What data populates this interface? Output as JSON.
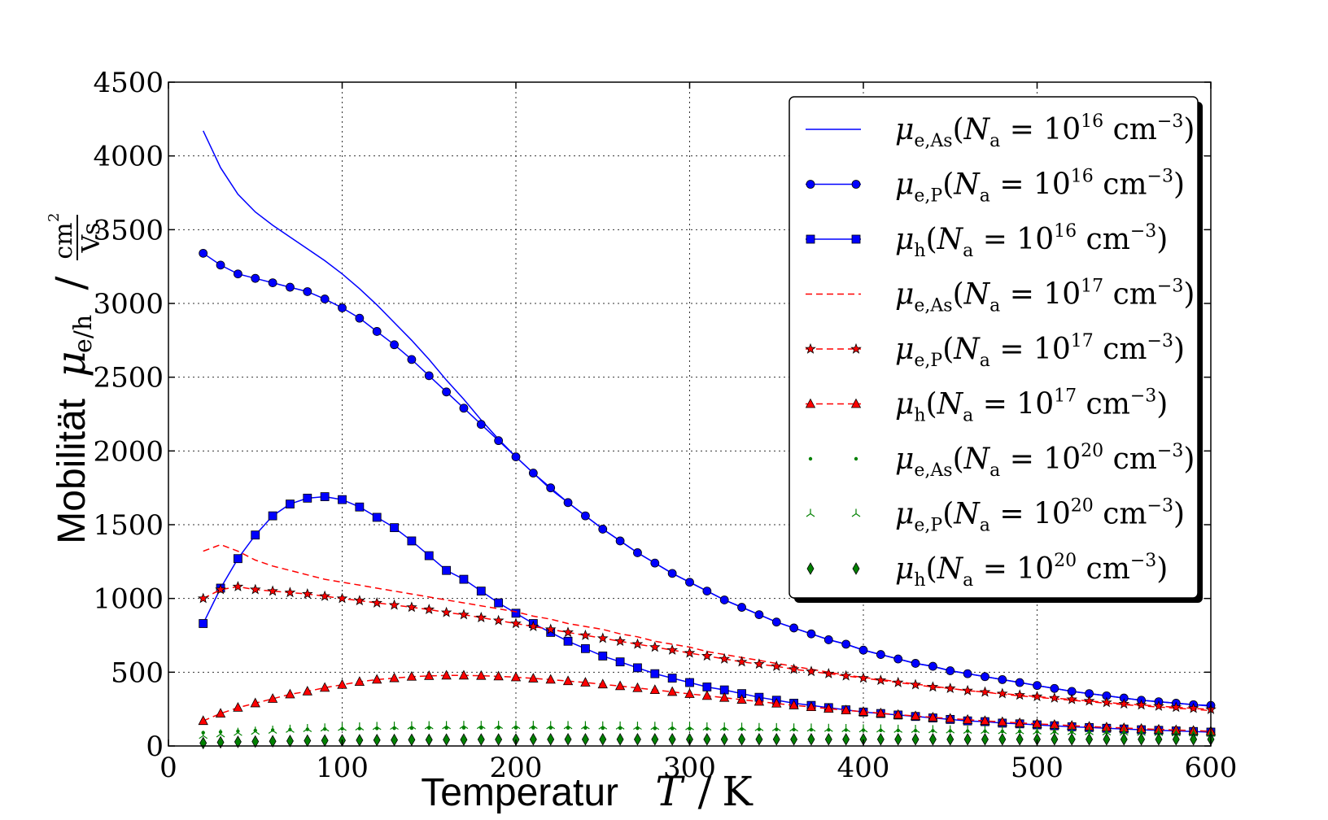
{
  "chart_data": {
    "type": "line",
    "xlabel": {
      "word": "Temperatur",
      "symbol": "T",
      "slash": "/",
      "unit": "K"
    },
    "ylabel": {
      "word": "Mobilität",
      "symbol": "μ",
      "symbol_sub": "e/h",
      "slash": "/",
      "unit_num": "cm",
      "unit_num_sup": "2",
      "unit_den": "Vs"
    },
    "xlim": [
      0,
      600
    ],
    "ylim": [
      0,
      4500
    ],
    "xticks": [
      0,
      100,
      200,
      300,
      400,
      500,
      600
    ],
    "yticks": [
      0,
      500,
      1000,
      1500,
      2000,
      2500,
      3000,
      3500,
      4000,
      4500
    ],
    "grid": true,
    "legend_position": "top-right",
    "x": [
      20,
      30,
      40,
      50,
      60,
      70,
      80,
      90,
      100,
      110,
      120,
      130,
      140,
      150,
      160,
      170,
      180,
      190,
      200,
      210,
      220,
      230,
      240,
      250,
      260,
      270,
      280,
      290,
      300,
      310,
      320,
      330,
      340,
      350,
      360,
      370,
      380,
      390,
      400,
      410,
      420,
      430,
      440,
      450,
      460,
      470,
      480,
      490,
      500,
      510,
      520,
      530,
      540,
      550,
      560,
      570,
      580,
      590,
      600
    ],
    "series": [
      {
        "name": "μe,As(Na = 10^16 cm^-3)",
        "legend": {
          "mu_sub": "e,As",
          "exp": "16"
        },
        "color": "#0000ff",
        "dash": "solid",
        "marker": "none",
        "values": [
          4170,
          3920,
          3740,
          3620,
          3530,
          3450,
          3370,
          3290,
          3200,
          3100,
          2990,
          2870,
          2750,
          2620,
          2480,
          2350,
          2210,
          2080,
          1960,
          1850,
          1740,
          1650,
          1560,
          1470,
          1390,
          1310,
          1240,
          1170,
          1110,
          1050,
          990,
          940,
          890,
          840,
          800,
          760,
          720,
          690,
          650,
          620,
          590,
          560,
          540,
          510,
          490,
          470,
          450,
          430,
          410,
          390,
          370,
          355,
          340,
          325,
          310,
          300,
          290,
          280,
          270
        ]
      },
      {
        "name": "μe,P(Na = 10^16 cm^-3)",
        "legend": {
          "mu_sub": "e,P",
          "exp": "16"
        },
        "color": "#0000ff",
        "dash": "solid",
        "marker": "circle",
        "values": [
          3340,
          3260,
          3200,
          3170,
          3140,
          3110,
          3080,
          3030,
          2970,
          2900,
          2810,
          2720,
          2620,
          2510,
          2400,
          2290,
          2180,
          2070,
          1960,
          1850,
          1750,
          1650,
          1560,
          1470,
          1390,
          1310,
          1240,
          1170,
          1110,
          1050,
          990,
          940,
          890,
          840,
          800,
          760,
          720,
          690,
          650,
          620,
          590,
          560,
          540,
          510,
          490,
          470,
          450,
          430,
          410,
          390,
          370,
          355,
          340,
          325,
          310,
          300,
          290,
          280,
          275
        ]
      },
      {
        "name": "μh(Na = 10^16 cm^-3)",
        "legend": {
          "mu_sub": "h",
          "exp": "16"
        },
        "color": "#0000ff",
        "dash": "solid",
        "marker": "square",
        "values": [
          830,
          1070,
          1270,
          1430,
          1560,
          1640,
          1680,
          1690,
          1670,
          1620,
          1550,
          1480,
          1390,
          1290,
          1190,
          1130,
          1050,
          970,
          900,
          830,
          770,
          710,
          660,
          610,
          570,
          530,
          490,
          460,
          430,
          400,
          380,
          355,
          330,
          310,
          290,
          275,
          260,
          245,
          230,
          220,
          210,
          200,
          190,
          180,
          170,
          165,
          155,
          150,
          143,
          137,
          130,
          125,
          120,
          115,
          110,
          106,
          102,
          98,
          94
        ]
      },
      {
        "name": "μe,As(Na = 10^17 cm^-3)",
        "legend": {
          "mu_sub": "e,As",
          "exp": "17"
        },
        "color": "#ff0000",
        "dash": "dashed",
        "marker": "none",
        "values": [
          1320,
          1365,
          1320,
          1260,
          1220,
          1190,
          1160,
          1130,
          1110,
          1090,
          1070,
          1050,
          1030,
          1010,
          990,
          970,
          950,
          930,
          910,
          880,
          860,
          830,
          810,
          790,
          760,
          740,
          710,
          690,
          670,
          640,
          620,
          600,
          580,
          560,
          540,
          520,
          500,
          480,
          465,
          450,
          435,
          420,
          405,
          390,
          375,
          365,
          350,
          340,
          330,
          320,
          310,
          300,
          290,
          280,
          272,
          264,
          256,
          248,
          240
        ]
      },
      {
        "name": "μe,P(Na = 10^17 cm^-3)",
        "legend": {
          "mu_sub": "e,P",
          "exp": "17"
        },
        "color": "#ff0000",
        "dash": "dashed",
        "marker": "star",
        "values": [
          1000,
          1060,
          1080,
          1060,
          1050,
          1040,
          1030,
          1015,
          1000,
          985,
          970,
          955,
          940,
          925,
          905,
          890,
          870,
          850,
          830,
          810,
          790,
          770,
          750,
          730,
          710,
          690,
          670,
          650,
          630,
          610,
          590,
          570,
          555,
          540,
          520,
          505,
          490,
          475,
          460,
          445,
          430,
          415,
          400,
          390,
          375,
          365,
          355,
          345,
          335,
          325,
          315,
          305,
          295,
          285,
          278,
          270,
          262,
          255,
          248
        ]
      },
      {
        "name": "μh(Na = 10^17 cm^-3)",
        "legend": {
          "mu_sub": "h",
          "exp": "17"
        },
        "color": "#ff0000",
        "dash": "dashed",
        "marker": "triangle",
        "values": [
          170,
          220,
          260,
          290,
          320,
          350,
          370,
          395,
          415,
          435,
          450,
          460,
          470,
          475,
          478,
          478,
          476,
          472,
          466,
          458,
          450,
          440,
          430,
          418,
          406,
          393,
          380,
          367,
          353,
          340,
          327,
          314,
          301,
          288,
          276,
          264,
          253,
          242,
          232,
          222,
          212,
          203,
          194,
          186,
          178,
          170,
          163,
          156,
          150,
          144,
          138,
          132,
          127,
          122,
          117,
          112,
          108,
          104,
          100
        ]
      },
      {
        "name": "μe,As(Na = 10^20 cm^-3)",
        "legend": {
          "mu_sub": "e,As",
          "exp": "20"
        },
        "color": "#008000",
        "dash": "none",
        "marker": "point",
        "values": [
          90,
          95,
          100,
          105,
          108,
          111,
          113,
          115,
          117,
          118,
          119,
          120,
          121,
          122,
          122,
          123,
          123,
          123,
          123,
          123,
          123,
          122,
          122,
          121,
          121,
          120,
          119,
          118,
          117,
          116,
          115,
          114,
          113,
          112,
          111,
          110,
          109,
          108,
          107,
          106,
          105,
          104,
          103,
          102,
          101,
          100,
          99,
          98,
          97,
          96,
          95,
          94,
          93,
          92,
          91,
          90,
          89,
          88,
          87
        ]
      },
      {
        "name": "μe,P(Na = 10^20 cm^-3)",
        "legend": {
          "mu_sub": "e,P",
          "exp": "20"
        },
        "color": "#008000",
        "dash": "none",
        "marker": "tri",
        "values": [
          70,
          80,
          90,
          98,
          105,
          111,
          116,
          120,
          124,
          127,
          130,
          132,
          134,
          135,
          136,
          137,
          137,
          137,
          137,
          137,
          136,
          136,
          135,
          134,
          133,
          132,
          131,
          130,
          129,
          127,
          126,
          125,
          123,
          122,
          120,
          119,
          117,
          116,
          114,
          113,
          111,
          110,
          108,
          107,
          105,
          104,
          102,
          101,
          99,
          98,
          96,
          95,
          93,
          92,
          90,
          89,
          87,
          86,
          84
        ]
      },
      {
        "name": "μh(Na = 10^20 cm^-3)",
        "legend": {
          "mu_sub": "h",
          "exp": "20"
        },
        "color": "#008000",
        "dash": "none",
        "marker": "diamond",
        "values": [
          20,
          25,
          28,
          30,
          32,
          34,
          36,
          37,
          38,
          39,
          40,
          41,
          42,
          42,
          43,
          43,
          44,
          44,
          44,
          45,
          45,
          45,
          45,
          45,
          45,
          45,
          45,
          45,
          45,
          45,
          45,
          45,
          45,
          45,
          45,
          45,
          45,
          45,
          45,
          45,
          45,
          45,
          45,
          45,
          45,
          45,
          45,
          45,
          45,
          45,
          45,
          45,
          45,
          45,
          45,
          45,
          45,
          45,
          45
        ]
      }
    ],
    "legend_math": {
      "mu": "μ",
      "open": "(N",
      "n_sub": "a",
      "eq": " = 10",
      "unit": " cm",
      "unit_sup": "−3",
      "close": ")"
    }
  }
}
